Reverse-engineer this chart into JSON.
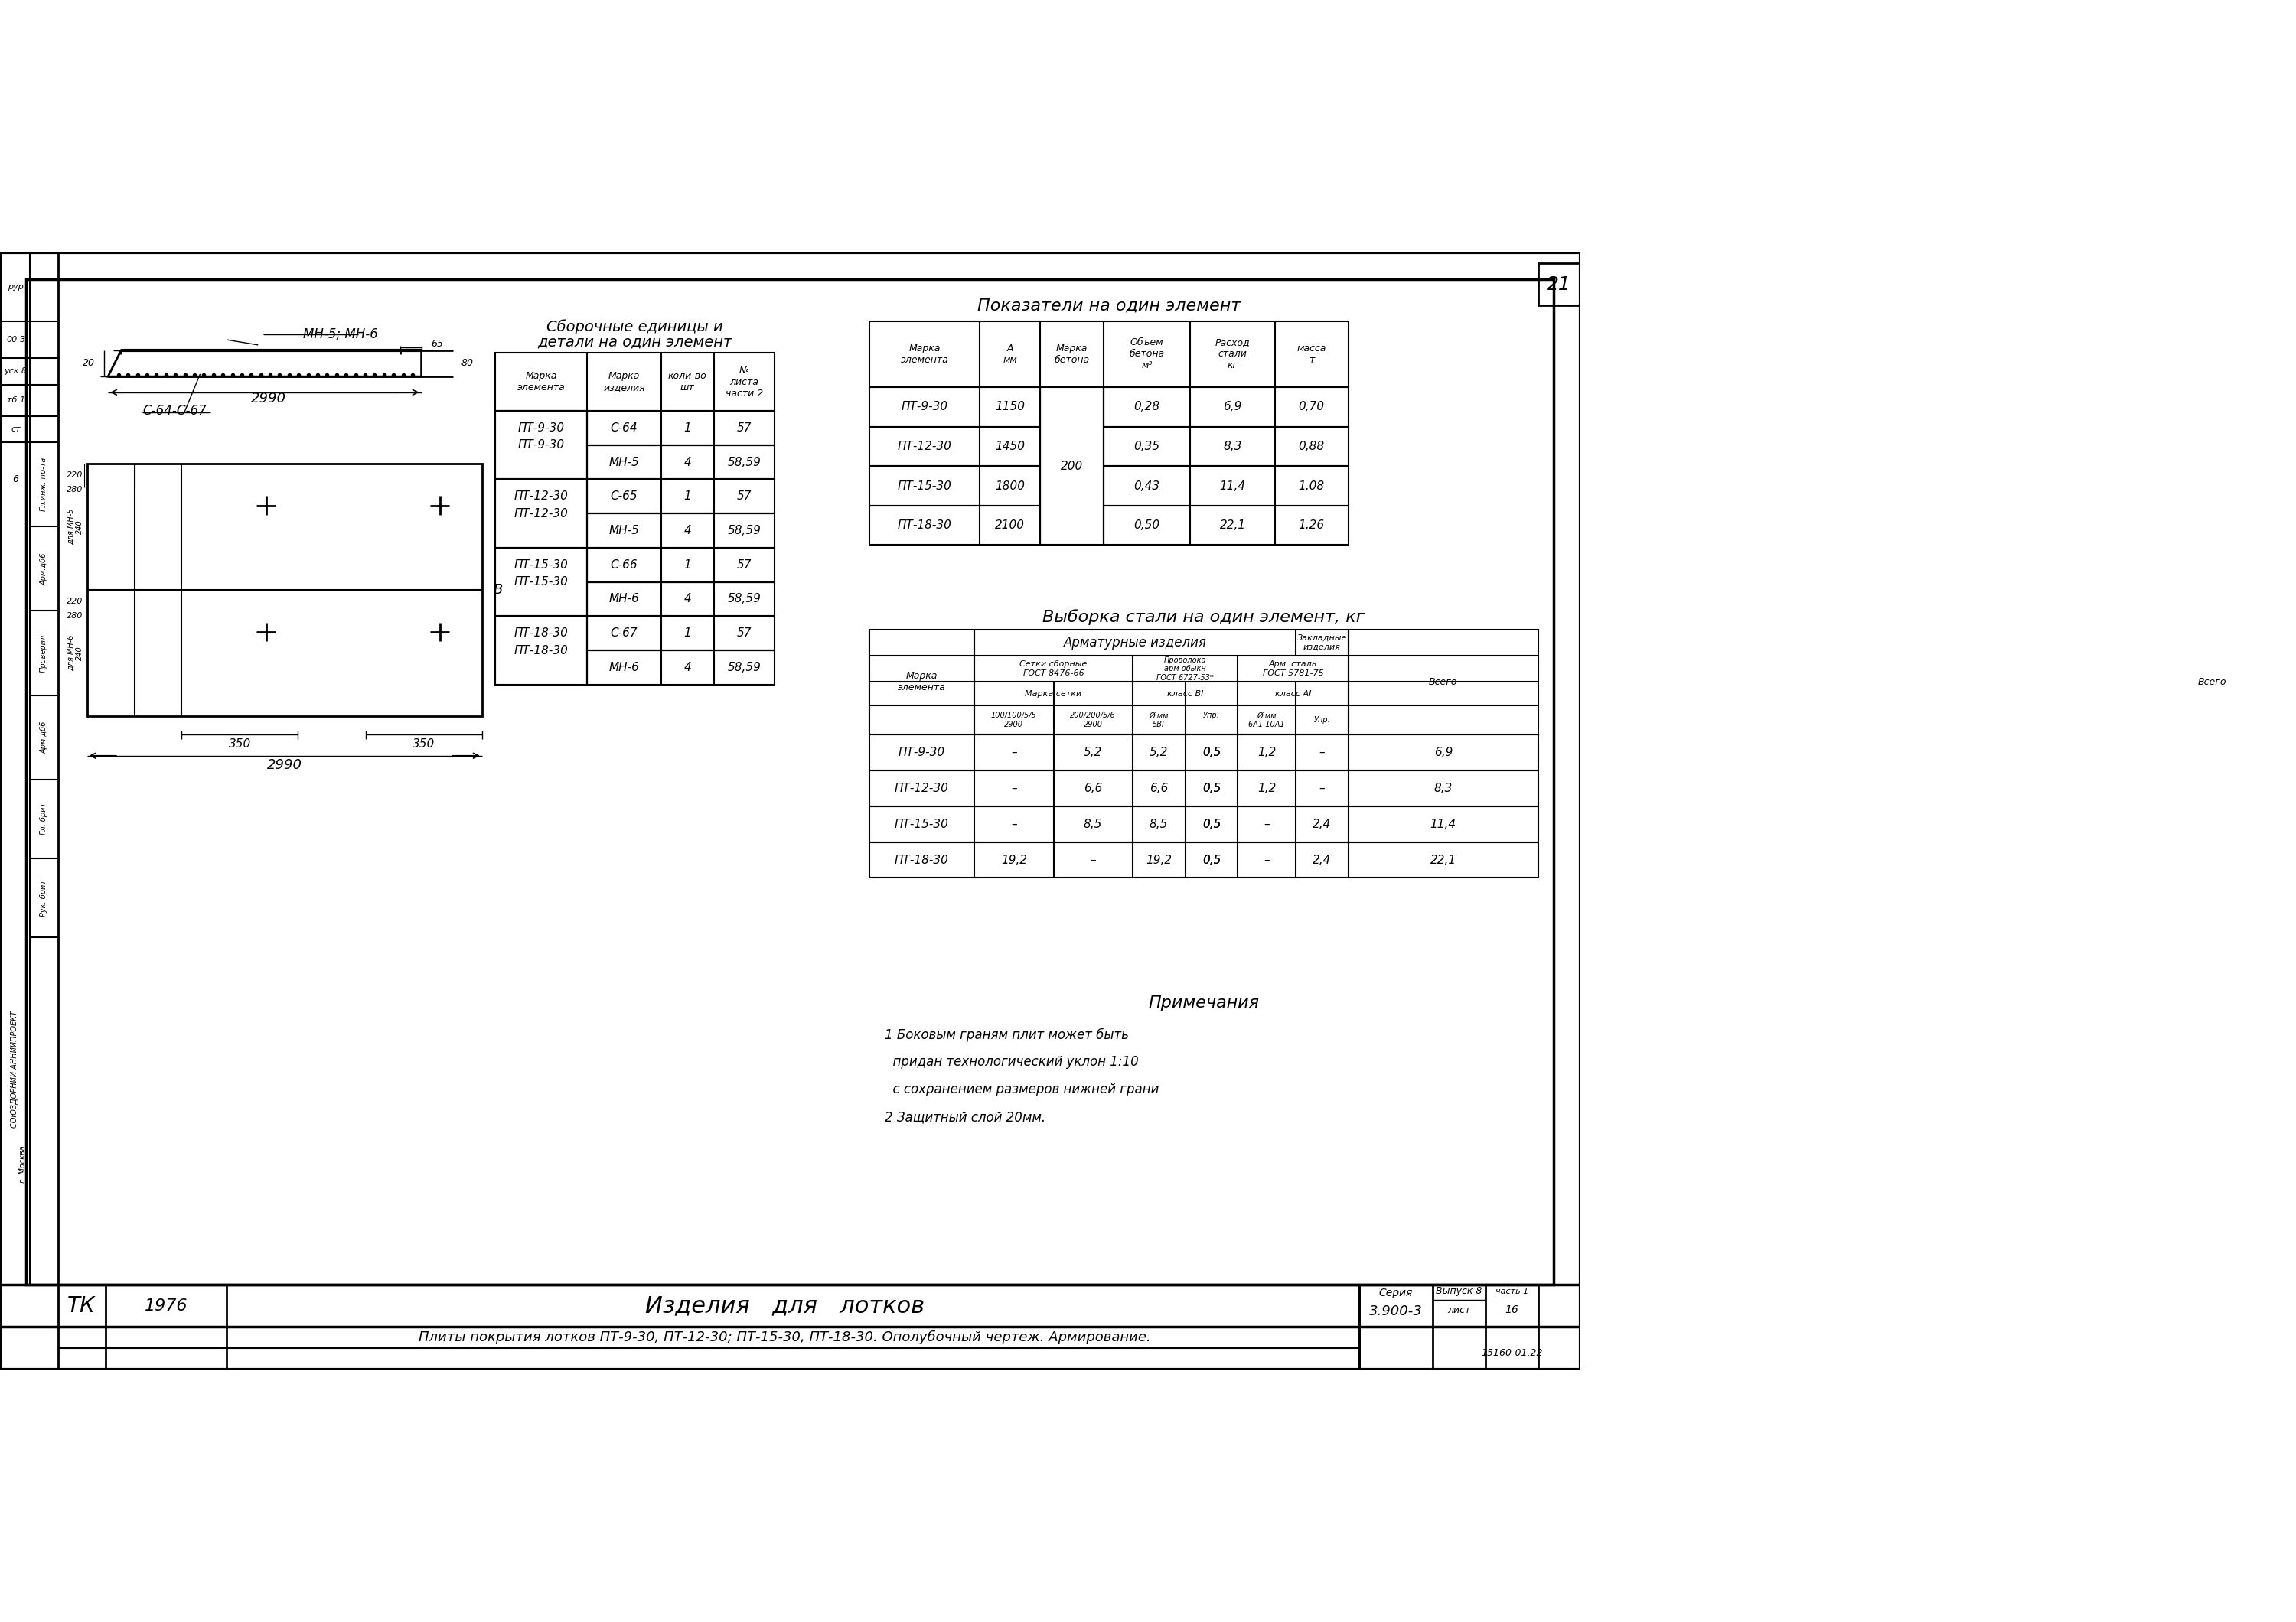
{
  "bg_color": "#ffffff",
  "title_bottom": "Изделия   для   лотков",
  "subtitle_bottom": "Плиты покрытия лотков ПТ-9-30, ПТ-12-30; ПТ-15-30, ПТ-18-30. Ополубочный чертеж. Армирование.",
  "year": "1976",
  "series": "3.900-3",
  "page_num": "21",
  "drawing_code": "15160-01.22",
  "assembly_rows": [
    [
      "ПТ-9-30",
      "С-64",
      "1",
      "57"
    ],
    [
      "",
      "МН-5",
      "4",
      "58,59"
    ],
    [
      "ПТ-12-30",
      "С-65",
      "1",
      "57"
    ],
    [
      "",
      "МН-5",
      "4",
      "58,59"
    ],
    [
      "ПТ-15-30",
      "С-66",
      "1",
      "57"
    ],
    [
      "",
      "МН-6",
      "4",
      "58,59"
    ],
    [
      "ПТ-18-30",
      "С-67",
      "1",
      "57"
    ],
    [
      "",
      "МН-6",
      "4",
      "58,59"
    ]
  ],
  "indicators_rows": [
    [
      "ПТ-9-30",
      "1150",
      "",
      "0,28",
      "6,9",
      "0,70"
    ],
    [
      "ПТ-12-30",
      "1450",
      "200",
      "0,35",
      "8,3",
      "0,88"
    ],
    [
      "ПТ-15-30",
      "1800",
      "",
      "0,43",
      "11,4",
      "1,08"
    ],
    [
      "ПТ-18-30",
      "2100",
      "",
      "0,50",
      "22,1",
      "1,26"
    ]
  ],
  "steel_rows": [
    [
      "ПТ-9-30",
      "–",
      "5,2",
      "5,2",
      "0,5",
      "0,5",
      "1,2",
      "–",
      "1,2",
      "6,9"
    ],
    [
      "ПТ-12-30",
      "–",
      "6,6",
      "6,6",
      "0,5",
      "0,5",
      "1,2",
      "–",
      "1,2",
      "8,3"
    ],
    [
      "ПТ-15-30",
      "–",
      "8,5",
      "8,5",
      "0,5",
      "0,5",
      "–",
      "2,4",
      "2,4",
      "11,4"
    ],
    [
      "ПТ-18-30",
      "19,2",
      "–",
      "19,2",
      "0,5",
      "0,5",
      "–",
      "2,4",
      "2,4",
      "22,1"
    ]
  ],
  "notes": [
    "1 Боковым граням плит может быть",
    "  придан технологический уклон 1:10",
    "  с сохранением размеров нижней грани",
    "2 Защитный слой 20мм."
  ],
  "left_top_rows": [
    [
      "рур\n00-3\nуск 8\nтб 1"
    ],
    [
      "ст"
    ],
    [
      "6"
    ]
  ],
  "stamp_rows": [
    "Гл.инж. пр-та",
    "Арм.дб6",
    "Проверил",
    "Арм.дб6",
    "Гл. брит",
    "Рук. брит"
  ]
}
